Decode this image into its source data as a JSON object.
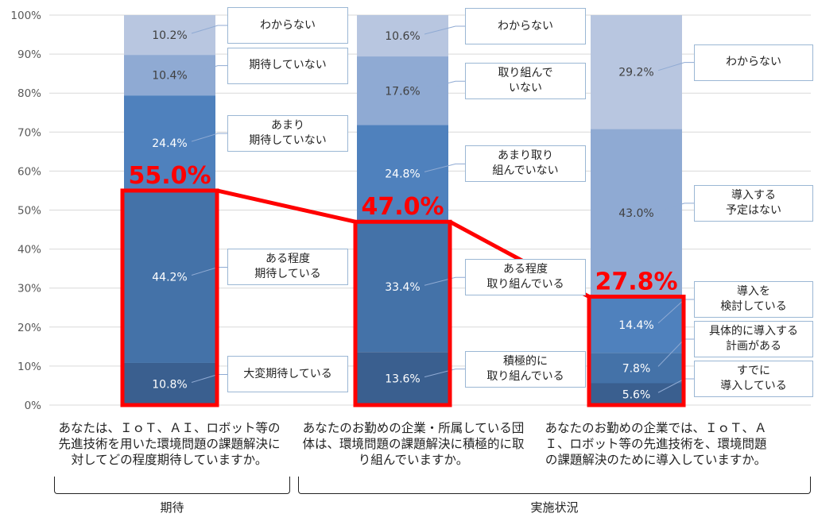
{
  "chart_data": {
    "type": "bar",
    "stacked": true,
    "y_ticks": [
      "0%",
      "10%",
      "20%",
      "30%",
      "40%",
      "50%",
      "60%",
      "70%",
      "80%",
      "90%",
      "100%"
    ],
    "ylim": [
      0,
      100
    ],
    "grid": true,
    "columns": [
      {
        "question": "あなたは、ＩｏＴ、ＡＩ、ロボット等の先進技術を用いた環境問題の課題解決に対してどの程度期待していますか。",
        "highlight": "55.0%",
        "segments": [
          {
            "label": "大変期待している",
            "value": 10.8,
            "display": "10.8%",
            "color": "#3a5f8f"
          },
          {
            "label": "ある程度\n期待している",
            "value": 44.2,
            "display": "44.2%",
            "color": "#4472a8"
          },
          {
            "label": "あまり\n期待していない",
            "value": 24.4,
            "display": "24.4%",
            "color": "#4f81bd"
          },
          {
            "label": "期待していない",
            "value": 10.4,
            "display": "10.4%",
            "color": "#8faad3"
          },
          {
            "label": "わからない",
            "value": 10.2,
            "display": "10.2%",
            "color": "#b8c6e0"
          }
        ]
      },
      {
        "question": "あなたのお勤めの企業・所属している団体は、環境問題の課題解決に積極的に取り組んでいますか。",
        "highlight": "47.0%",
        "segments": [
          {
            "label": "積極的に\n取り組んでいる",
            "value": 13.6,
            "display": "13.6%",
            "color": "#3a5f8f"
          },
          {
            "label": "ある程度\n取り組んでいる",
            "value": 33.4,
            "display": "33.4%",
            "color": "#4472a8"
          },
          {
            "label": "あまり取り\n組んでいない",
            "value": 24.8,
            "display": "24.8%",
            "color": "#4f81bd"
          },
          {
            "label": "取り組んで\nいない",
            "value": 17.6,
            "display": "17.6%",
            "color": "#8faad3"
          },
          {
            "label": "わからない",
            "value": 10.6,
            "display": "10.6%",
            "color": "#b8c6e0"
          }
        ]
      },
      {
        "question": "あなたのお勤めの企業では、ＩｏＴ、ＡＩ、ロボット等の先進技術を、環境問題の課題解決のために導入していますか。",
        "highlight": "27.8%",
        "segments": [
          {
            "label": "すでに\n導入している",
            "value": 5.6,
            "display": "5.6%",
            "color": "#3a5f8f"
          },
          {
            "label": "具体的に導入する\n計画がある",
            "value": 7.8,
            "display": "7.8%",
            "color": "#4472a8"
          },
          {
            "label": "導入を\n検討している",
            "value": 14.4,
            "display": "14.4%",
            "color": "#4f81bd"
          },
          {
            "label": "導入する\n予定はない",
            "value": 43.0,
            "display": "43.0%",
            "color": "#8faad3"
          },
          {
            "label": "わからない",
            "value": 29.2,
            "display": "29.2%",
            "color": "#b8c6e0"
          }
        ]
      }
    ],
    "groups": [
      {
        "label": "期待",
        "columns": [
          0
        ]
      },
      {
        "label": "実施状況",
        "columns": [
          1,
          2
        ]
      }
    ],
    "colors": {
      "highlight": "#ff0000",
      "grid": "#d9d9d9",
      "callout_border": "#9bb7d4",
      "leader": "#8faad3"
    }
  }
}
